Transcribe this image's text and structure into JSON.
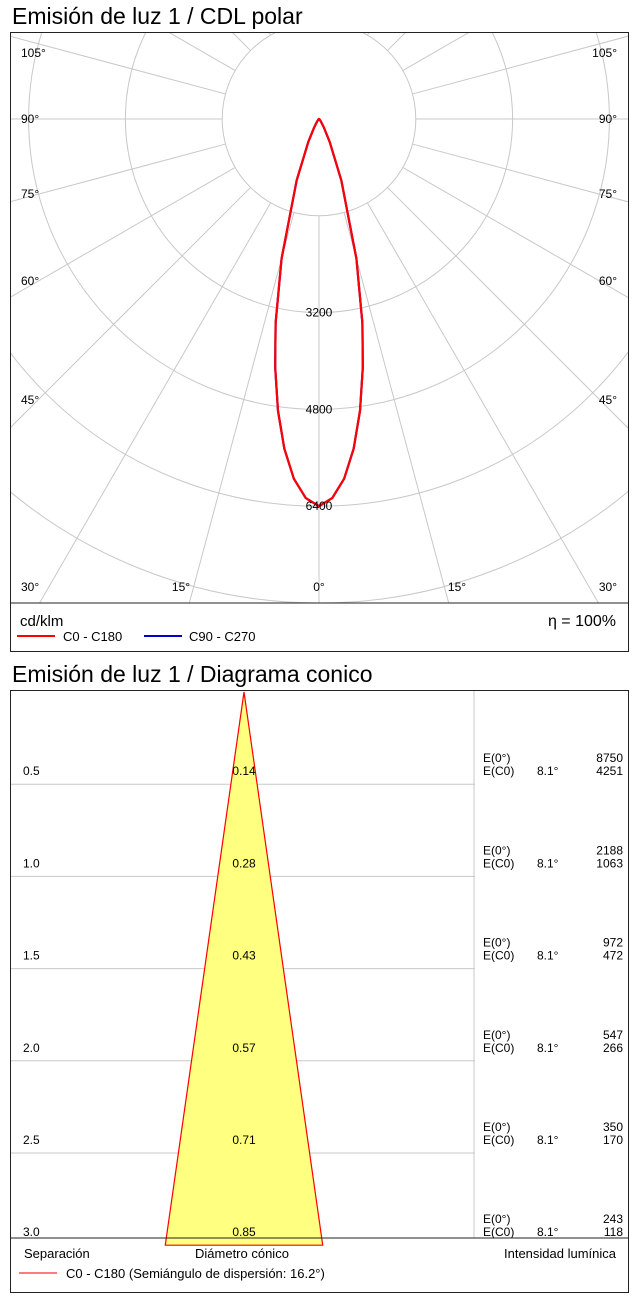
{
  "chart_data": [
    {
      "type": "polar",
      "title": "Emisión de luz 1 / CDL polar",
      "radial_tick_labels": [
        "3200",
        "4800",
        "6400"
      ],
      "radial_ticks": [
        3200,
        4800,
        6400
      ],
      "rmax": 8000,
      "angle_labels_left": [
        "105°",
        "90°",
        "75°",
        "60°",
        "45°",
        "30°"
      ],
      "angle_labels_right": [
        "105°",
        "90°",
        "75°",
        "60°",
        "45°",
        "30°"
      ],
      "angle_labels_bottom": [
        "30°",
        "15°",
        "0°",
        "15°",
        "30°"
      ],
      "unit": "cd/klm",
      "efficiency": "η = 100%",
      "series": [
        {
          "name": "C0 - C180",
          "color": "#ff0000",
          "angles_deg": [
            0,
            2,
            4,
            6,
            8,
            10,
            12,
            15,
            20,
            25,
            30,
            40,
            50,
            60,
            70,
            80,
            90
          ],
          "intensity": [
            6400,
            6270,
            5960,
            5480,
            4870,
            4170,
            3450,
            2390,
            1080,
            420,
            160,
            40,
            15,
            8,
            4,
            2,
            0
          ]
        },
        {
          "name": "C90 - C270",
          "color": "#0000cc",
          "angles_deg": [
            0,
            2,
            4,
            6,
            8,
            10,
            12,
            15,
            20,
            25,
            30,
            40,
            50,
            60,
            70,
            80,
            90
          ],
          "intensity": [
            6400,
            6270,
            5960,
            5480,
            4870,
            4170,
            3450,
            2390,
            1080,
            420,
            160,
            40,
            15,
            8,
            4,
            2,
            0
          ]
        }
      ]
    },
    {
      "type": "cone",
      "title": "Emisión de luz 1 / Diagrama conico",
      "half_angle_deg": 8.1,
      "separation": [
        "0.5",
        "1.0",
        "1.5",
        "2.0",
        "2.5",
        "3.0"
      ],
      "diameter": [
        "0.14",
        "0.28",
        "0.43",
        "0.57",
        "0.71",
        "0.85"
      ],
      "e0_label": "E(0°)",
      "ec0_label": "E(C0)",
      "angle_label": "8.1°",
      "e0": [
        "8750",
        "2188",
        "972",
        "547",
        "350",
        "243"
      ],
      "ec0": [
        "4251",
        "1063",
        "472",
        "266",
        "170",
        "118"
      ],
      "footer": {
        "separation": "Separación",
        "diameter": "Diámetro cónico",
        "intensity": "Intensidad lumínica"
      },
      "legend": "C0 - C180 (Semiángulo de dispersión: 16.2°)",
      "cone_fill": "#ffff80",
      "cone_stroke": "#ff0000"
    }
  ]
}
